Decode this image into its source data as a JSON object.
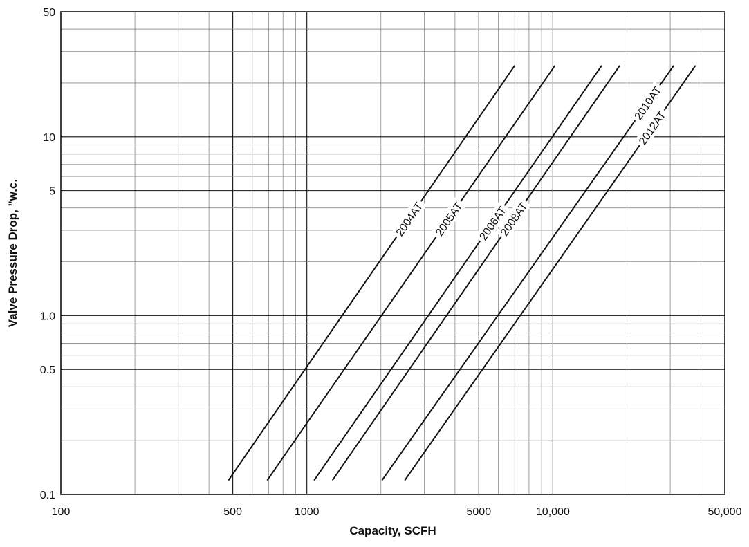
{
  "chart_data": {
    "type": "line",
    "xlabel": "Capacity, SCFH",
    "ylabel": "Valve Pressure Drop, \"w.c.",
    "x_scale": "log",
    "y_scale": "log",
    "xlim": [
      100,
      50000
    ],
    "ylim": [
      0.1,
      50
    ],
    "grid": true,
    "x_ticks": [
      {
        "value": 100,
        "label": "100"
      },
      {
        "value": 500,
        "label": "500"
      },
      {
        "value": 1000,
        "label": "1000"
      },
      {
        "value": 5000,
        "label": "5000"
      },
      {
        "value": 10000,
        "label": "10,000"
      },
      {
        "value": 50000,
        "label": "50,000"
      }
    ],
    "y_ticks": [
      {
        "value": 0.1,
        "label": "0.1"
      },
      {
        "value": 0.5,
        "label": "0.5"
      },
      {
        "value": 1,
        "label": "1.0"
      },
      {
        "value": 5,
        "label": "5"
      },
      {
        "value": 10,
        "label": "10"
      },
      {
        "value": 50,
        "label": "50"
      }
    ],
    "series": [
      {
        "name": "2004AT",
        "points": [
          [
            480,
            0.12
          ],
          [
            7000,
            25
          ]
        ]
      },
      {
        "name": "2005AT",
        "points": [
          [
            690,
            0.12
          ],
          [
            10200,
            25
          ]
        ]
      },
      {
        "name": "2006AT",
        "points": [
          [
            1070,
            0.12
          ],
          [
            15800,
            25
          ]
        ]
      },
      {
        "name": "2008AT",
        "points": [
          [
            1270,
            0.12
          ],
          [
            18700,
            25
          ]
        ]
      },
      {
        "name": "2010AT",
        "points": [
          [
            2020,
            0.12
          ],
          [
            31000,
            25
          ]
        ]
      },
      {
        "name": "2012AT",
        "points": [
          [
            2500,
            0.12
          ],
          [
            38000,
            25
          ]
        ]
      }
    ]
  }
}
